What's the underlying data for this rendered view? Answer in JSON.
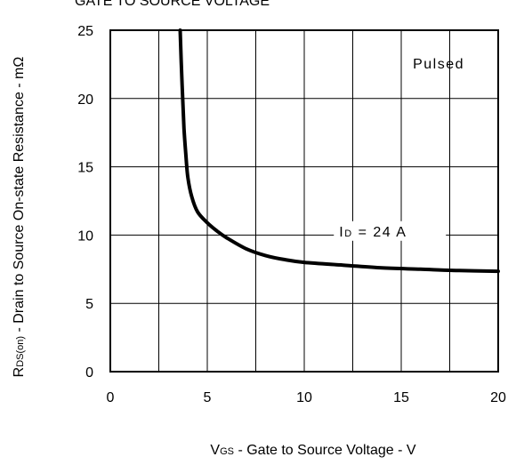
{
  "chart_data": {
    "type": "line",
    "title": "GATE TO SOURCE VOLTAGE",
    "xlabel": {
      "main": "V",
      "sub": "GS",
      "rest": " - Gate to Source Voltage - V"
    },
    "ylabel": {
      "main": "R",
      "sub": "DS(on)",
      "rest": " - Drain to Source On-state Resistance - mΩ"
    },
    "xlim": [
      0,
      20
    ],
    "ylim": [
      0,
      25
    ],
    "xticks": [
      0,
      2.5,
      5,
      7.5,
      10,
      12.5,
      15,
      17.5,
      20
    ],
    "yticks": [
      0,
      5,
      10,
      15,
      20,
      25
    ],
    "xtick_labels": [
      "0",
      "5",
      "10",
      "15",
      "20"
    ],
    "xtick_label_values": [
      0,
      5,
      10,
      15,
      20
    ],
    "ytick_labels": [
      "0",
      "5",
      "10",
      "15",
      "20",
      "25"
    ],
    "ytick_label_values": [
      0,
      5,
      10,
      15,
      20,
      25
    ],
    "grid": true,
    "annotations": [
      {
        "text": "Pulsed",
        "x": 15.6,
        "y": 22.6
      },
      {
        "text_main": "I",
        "text_sub": "D",
        "text_rest": " = 24  A",
        "x": 11.8,
        "y": 10.3
      }
    ],
    "series": [
      {
        "x": [
          3.6,
          3.7,
          3.8,
          3.9,
          4.0,
          4.2,
          4.5,
          5.0,
          5.5,
          6.0,
          7.0,
          8.0,
          9.0,
          10.0,
          12.0,
          14.0,
          16.0,
          18.0,
          20.0
        ],
        "values": [
          25.0,
          21.0,
          17.8,
          15.8,
          14.2,
          12.8,
          11.7,
          10.9,
          10.3,
          9.8,
          9.0,
          8.5,
          8.2,
          8.0,
          7.8,
          7.6,
          7.5,
          7.4,
          7.35
        ]
      }
    ]
  }
}
